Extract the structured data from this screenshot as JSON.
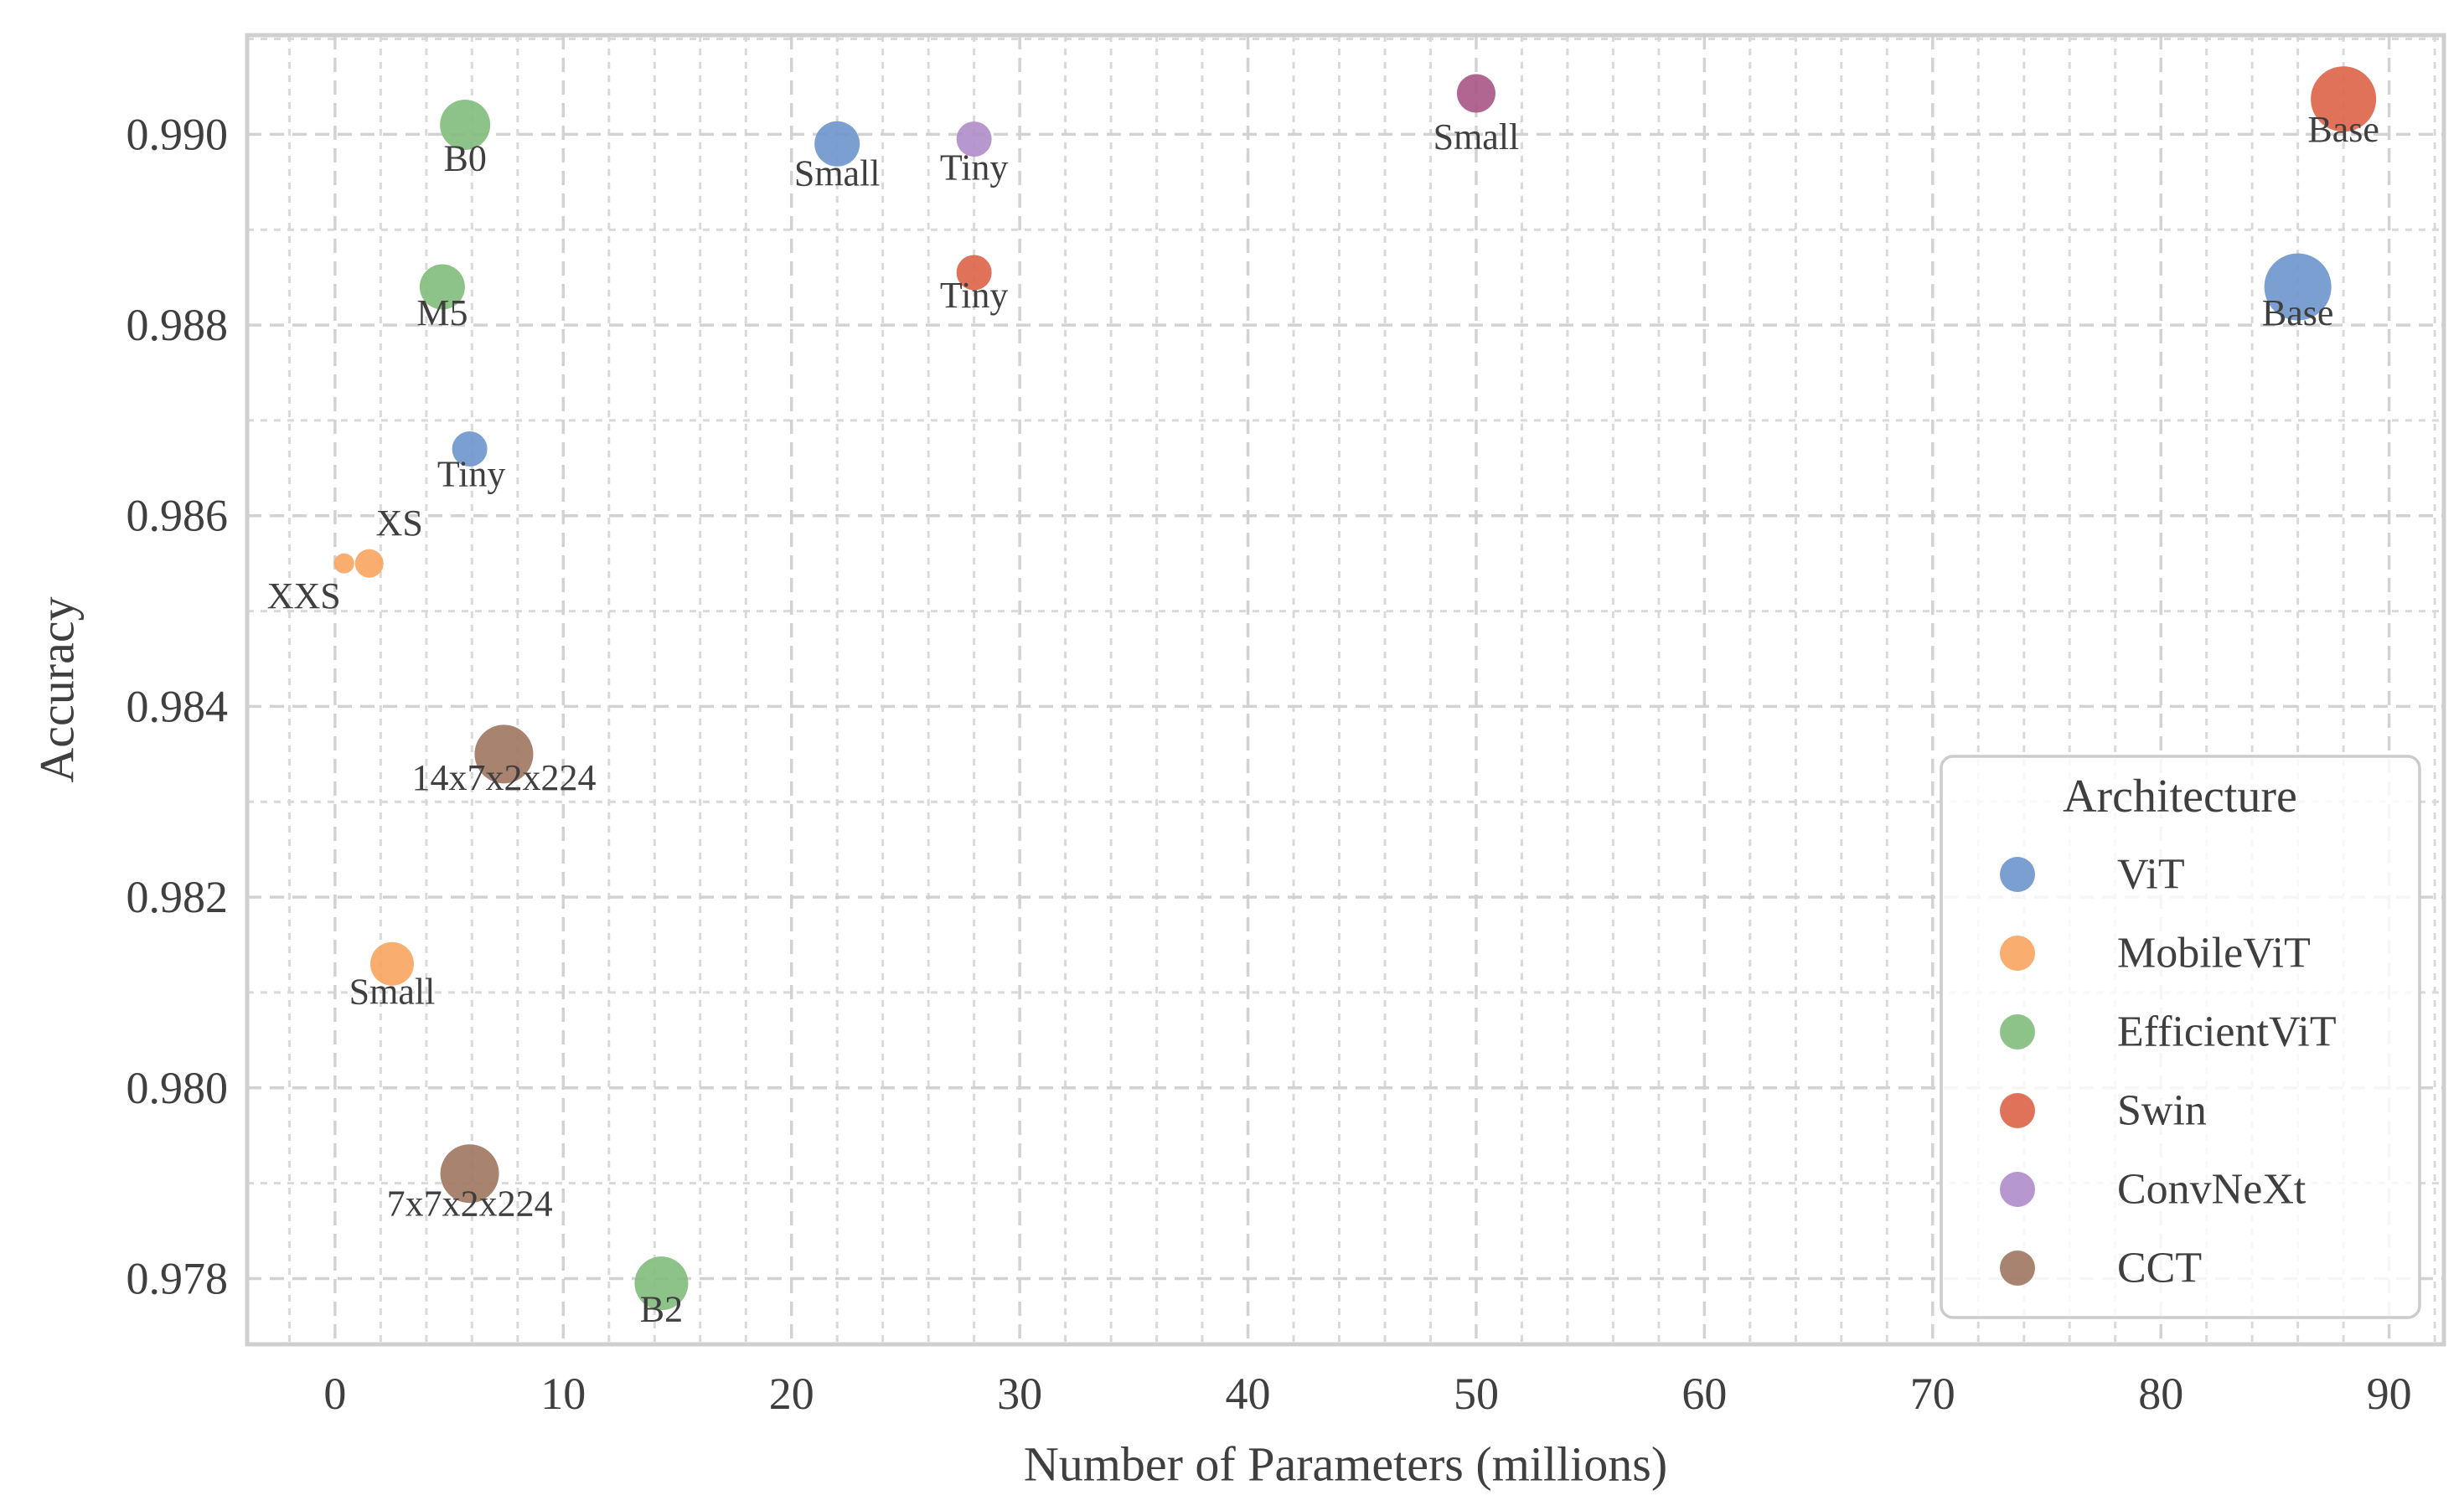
{
  "figure": {
    "background": "#ffffff",
    "text_color": "#3f3f3f",
    "grid_color_major": "#d2d2d2",
    "grid_color_minor": "#d9d9d9",
    "spine_color": "#cfcfcf",
    "legend_bg": "#ffffff",
    "legend_border": "#cccccc"
  },
  "chart_data": {
    "type": "scatter",
    "title": "",
    "xlabel": "Number of Parameters (millions)",
    "ylabel": "Accuracy",
    "xlim": [
      -3.85,
      92.4
    ],
    "ylim": [
      0.97731,
      0.99104
    ],
    "grid": true,
    "x_ticks": [
      0,
      10,
      20,
      30,
      40,
      50,
      60,
      70,
      80,
      90
    ],
    "x_tick_labels": [
      "0",
      "10",
      "20",
      "30",
      "40",
      "50",
      "60",
      "70",
      "80",
      "90"
    ],
    "y_ticks": [
      0.978,
      0.98,
      0.982,
      0.984,
      0.986,
      0.988,
      0.99
    ],
    "y_tick_labels": [
      "0.978",
      "0.980",
      "0.982",
      "0.984",
      "0.986",
      "0.988",
      "0.990"
    ],
    "x_minor_step": 2,
    "y_minor_step": 0.001,
    "bubble_opacity": 0.9,
    "legend": {
      "title": "Architecture",
      "position": "lower right",
      "items": [
        {
          "label": "ViT",
          "color": "#6e95cd"
        },
        {
          "label": "MobileViT",
          "color": "#f8a45f"
        },
        {
          "label": "EfficientViT",
          "color": "#81bd7c"
        },
        {
          "label": "Swin",
          "color": "#dd6347"
        },
        {
          "label": "ConvNeXt",
          "color": "#ae8cc9"
        },
        {
          "label": "CCT",
          "color": "#9f7661"
        }
      ]
    },
    "series": [
      {
        "name": "ViT",
        "color": "#6e95cd",
        "in_legend": true,
        "points": [
          {
            "label": "Tiny",
            "x": 5.9,
            "y": 0.9867,
            "r": 21,
            "label_dx": 2,
            "label_dy": 30
          },
          {
            "label": "Small",
            "x": 22,
            "y": 0.9899,
            "r": 27,
            "label_dx": 0,
            "label_dy": 35
          },
          {
            "label": "Base",
            "x": 86,
            "y": 0.9884,
            "r": 40,
            "label_dx": 0,
            "label_dy": 31
          }
        ]
      },
      {
        "name": "MobileViT",
        "color": "#f8a45f",
        "in_legend": true,
        "points": [
          {
            "label": "XXS",
            "x": 0.4,
            "y": 0.9855,
            "r": 12,
            "label_dx": -48,
            "label_dy": 39
          },
          {
            "label": "XS",
            "x": 1.5,
            "y": 0.9855,
            "r": 17,
            "label_dx": 36,
            "label_dy": -48
          },
          {
            "label": "Small",
            "x": 2.5,
            "y": 0.9813,
            "r": 26,
            "label_dx": 0,
            "label_dy": 33
          }
        ]
      },
      {
        "name": "EfficientViT",
        "color": "#81bd7c",
        "in_legend": true,
        "points": [
          {
            "label": "B0",
            "x": 5.7,
            "y": 0.9901,
            "r": 30,
            "label_dx": 0,
            "label_dy": 40
          },
          {
            "label": "M5",
            "x": 4.7,
            "y": 0.9884,
            "r": 27,
            "label_dx": 0,
            "label_dy": 31
          },
          {
            "label": "B2",
            "x": 14.3,
            "y": 0.97795,
            "r": 32,
            "label_dx": 0,
            "label_dy": 31
          }
        ]
      },
      {
        "name": "Swin",
        "color": "#dd6347",
        "in_legend": true,
        "points": [
          {
            "label": "Tiny",
            "x": 28,
            "y": 0.98855,
            "r": 21,
            "label_dx": 0,
            "label_dy": 27
          },
          {
            "label": "Base",
            "x": 88,
            "y": 0.99037,
            "r": 39,
            "label_dx": 0,
            "label_dy": 36
          }
        ]
      },
      {
        "name": "ConvNeXt",
        "color": "#ae8cc9",
        "in_legend": true,
        "points": [
          {
            "label": "Tiny",
            "x": 28,
            "y": 0.98995,
            "r": 21,
            "label_dx": 0,
            "label_dy": 34
          }
        ]
      },
      {
        "name": "ConvNeXt Small + Swin Small (overlapping)",
        "color": "#a85585",
        "in_legend": false,
        "points": [
          {
            "label": "Small",
            "x": 50,
            "y": 0.99043,
            "r": 23,
            "label_dx": 0,
            "label_dy": 52
          }
        ]
      },
      {
        "name": "CCT",
        "color": "#9f7661",
        "in_legend": true,
        "points": [
          {
            "label": "14x7x2x224",
            "x": 7.4,
            "y": 0.9835,
            "r": 35,
            "label_dx": 0,
            "label_dy": 28
          },
          {
            "label": "7x7x2x224",
            "x": 5.9,
            "y": 0.9791,
            "r": 35,
            "label_dx": 0,
            "label_dy": 36
          }
        ]
      }
    ]
  }
}
